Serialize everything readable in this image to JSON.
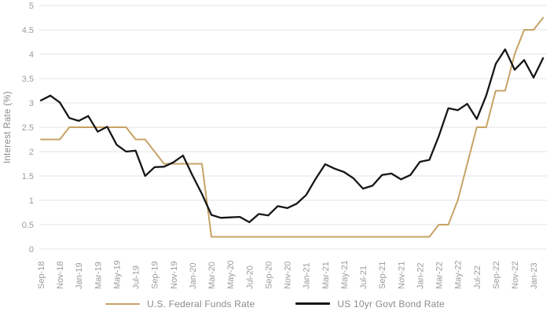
{
  "chart": {
    "y_axis_title": "Interest Rate (%)",
    "colors": {
      "grid": "#e3e3e3",
      "tick_text": "#9b9b9b",
      "axis_title_text": "#8a8a8a",
      "fed_funds_line": "#c7a265",
      "bond_line": "#161616"
    },
    "legend": [
      {
        "label": "U.S. Federal Funds Rate",
        "color": "#c7a265"
      },
      {
        "label": "US 10yr Govt Bond Rate",
        "color": "#161616"
      }
    ]
  },
  "chart_data": {
    "type": "line",
    "title": "",
    "xlabel": "",
    "ylabel": "Interest Rate (%)",
    "ylim": [
      0,
      5
    ],
    "ytick_step": 0.5,
    "grid": "horizontal",
    "legend_position": "bottom",
    "x": [
      "Sep-18",
      "Oct-18",
      "Nov-18",
      "Dec-18",
      "Jan-19",
      "Feb-19",
      "Mar-19",
      "Apr-19",
      "May-19",
      "Jun-19",
      "Jul-19",
      "Aug-19",
      "Sep-19",
      "Oct-19",
      "Nov-19",
      "Dec-19",
      "Jan-20",
      "Feb-20",
      "Mar-20",
      "Apr-20",
      "May-20",
      "Jun-20",
      "Jul-20",
      "Aug-20",
      "Sep-20",
      "Oct-20",
      "Nov-20",
      "Dec-20",
      "Jan-21",
      "Feb-21",
      "Mar-21",
      "Apr-21",
      "May-21",
      "Jun-21",
      "Jul-21",
      "Aug-21",
      "Sep-21",
      "Oct-21",
      "Nov-21",
      "Dec-21",
      "Jan-22",
      "Feb-22",
      "Mar-22",
      "Apr-22",
      "May-22",
      "Jun-22",
      "Jul-22",
      "Aug-22",
      "Sep-22",
      "Oct-22",
      "Nov-22",
      "Dec-22",
      "Jan-23",
      "Feb-23"
    ],
    "x_tick_labels": [
      "Sep-18",
      "Nov-18",
      "Jan-19",
      "Mar-19",
      "May-19",
      "Jul-19",
      "Sep-19",
      "Nov-19",
      "Jan-20",
      "Mar-20",
      "May-20",
      "Jul-20",
      "Sep-20",
      "Nov-20",
      "Jan-21",
      "Mar-21",
      "May-21",
      "Jul-21",
      "Sep-21",
      "Nov-21",
      "Jan-22",
      "Mar-22",
      "May-22",
      "Jul-22",
      "Sep-22",
      "Nov-22",
      "Jan-23"
    ],
    "series": [
      {
        "name": "U.S. Federal Funds Rate",
        "id": "fed-funds",
        "color": "#c7a265",
        "stroke_width": 2,
        "values": [
          2.25,
          2.25,
          2.25,
          2.5,
          2.5,
          2.5,
          2.5,
          2.5,
          2.5,
          2.5,
          2.25,
          2.25,
          2.0,
          1.75,
          1.75,
          1.75,
          1.75,
          1.75,
          0.25,
          0.25,
          0.25,
          0.25,
          0.25,
          0.25,
          0.25,
          0.25,
          0.25,
          0.25,
          0.25,
          0.25,
          0.25,
          0.25,
          0.25,
          0.25,
          0.25,
          0.25,
          0.25,
          0.25,
          0.25,
          0.25,
          0.25,
          0.25,
          0.5,
          0.5,
          1.0,
          1.75,
          2.5,
          2.5,
          3.25,
          3.25,
          4.0,
          4.5,
          4.5,
          4.75
        ]
      },
      {
        "name": "US 10yr Govt Bond Rate",
        "id": "bond",
        "color": "#161616",
        "stroke_width": 2.3,
        "values": [
          3.05,
          3.15,
          3.01,
          2.69,
          2.63,
          2.73,
          2.41,
          2.51,
          2.14,
          2.0,
          2.02,
          1.5,
          1.68,
          1.69,
          1.78,
          1.92,
          1.51,
          1.13,
          0.7,
          0.64,
          0.65,
          0.66,
          0.55,
          0.72,
          0.69,
          0.88,
          0.84,
          0.93,
          1.11,
          1.44,
          1.74,
          1.65,
          1.58,
          1.45,
          1.24,
          1.3,
          1.52,
          1.55,
          1.43,
          1.52,
          1.79,
          1.83,
          2.32,
          2.89,
          2.85,
          2.98,
          2.67,
          3.15,
          3.8,
          4.1,
          3.68,
          3.88,
          3.52,
          3.92
        ]
      }
    ]
  }
}
